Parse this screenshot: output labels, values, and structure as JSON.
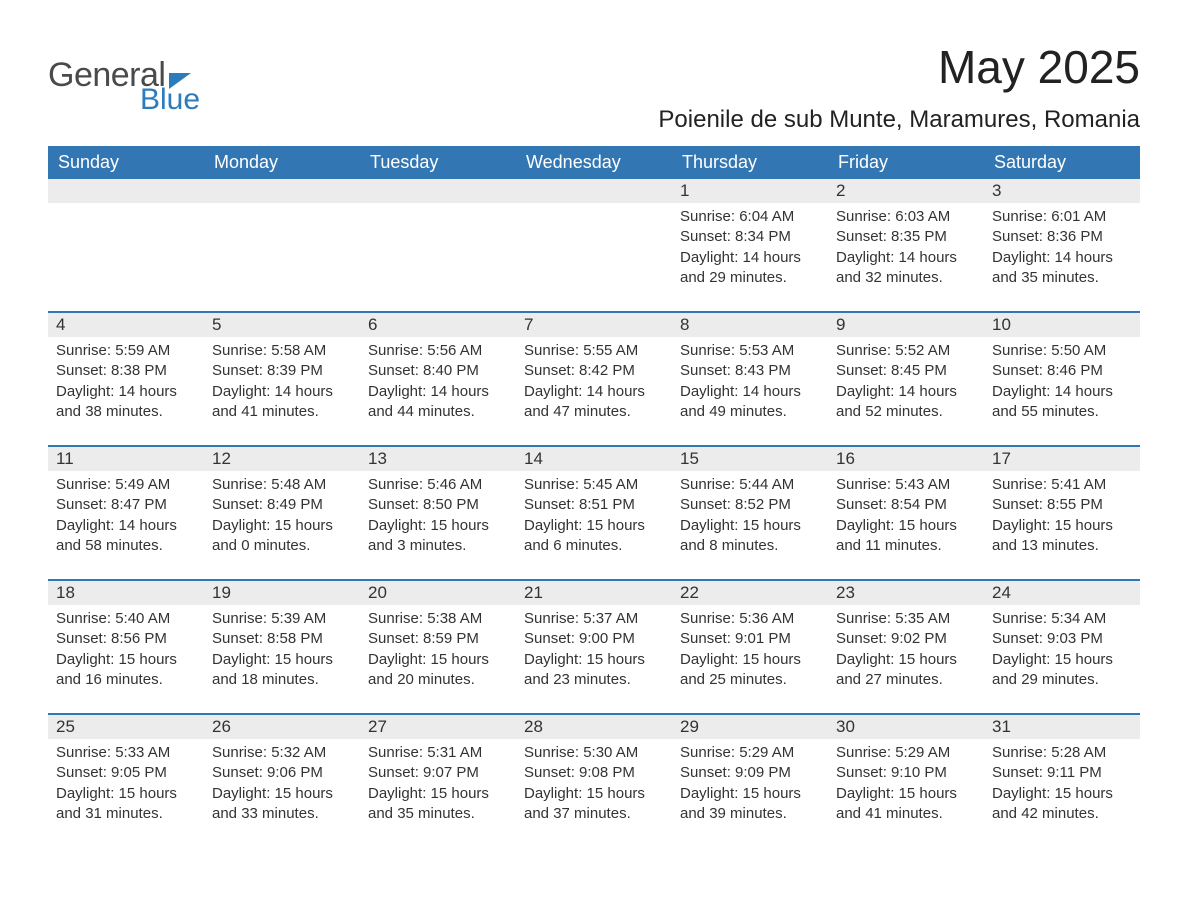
{
  "brand": {
    "general": "General",
    "blue": "Blue"
  },
  "title": "May 2025",
  "subtitle": "Poienile de sub Munte, Maramures, Romania",
  "colors": {
    "header_bg": "#3277b3",
    "header_text": "#ffffff",
    "daynum_bg": "#ececec",
    "week_divider": "#3277b3",
    "text": "#333333",
    "logo_blue": "#2b7bbd",
    "logo_gray": "#4a4a4a",
    "page_bg": "#ffffff"
  },
  "day_headers": [
    "Sunday",
    "Monday",
    "Tuesday",
    "Wednesday",
    "Thursday",
    "Friday",
    "Saturday"
  ],
  "weeks": [
    [
      {
        "day": "",
        "sunrise": "",
        "sunset": "",
        "daylight": ""
      },
      {
        "day": "",
        "sunrise": "",
        "sunset": "",
        "daylight": ""
      },
      {
        "day": "",
        "sunrise": "",
        "sunset": "",
        "daylight": ""
      },
      {
        "day": "",
        "sunrise": "",
        "sunset": "",
        "daylight": ""
      },
      {
        "day": "1",
        "sunrise": "Sunrise: 6:04 AM",
        "sunset": "Sunset: 8:34 PM",
        "daylight": "Daylight: 14 hours and 29 minutes."
      },
      {
        "day": "2",
        "sunrise": "Sunrise: 6:03 AM",
        "sunset": "Sunset: 8:35 PM",
        "daylight": "Daylight: 14 hours and 32 minutes."
      },
      {
        "day": "3",
        "sunrise": "Sunrise: 6:01 AM",
        "sunset": "Sunset: 8:36 PM",
        "daylight": "Daylight: 14 hours and 35 minutes."
      }
    ],
    [
      {
        "day": "4",
        "sunrise": "Sunrise: 5:59 AM",
        "sunset": "Sunset: 8:38 PM",
        "daylight": "Daylight: 14 hours and 38 minutes."
      },
      {
        "day": "5",
        "sunrise": "Sunrise: 5:58 AM",
        "sunset": "Sunset: 8:39 PM",
        "daylight": "Daylight: 14 hours and 41 minutes."
      },
      {
        "day": "6",
        "sunrise": "Sunrise: 5:56 AM",
        "sunset": "Sunset: 8:40 PM",
        "daylight": "Daylight: 14 hours and 44 minutes."
      },
      {
        "day": "7",
        "sunrise": "Sunrise: 5:55 AM",
        "sunset": "Sunset: 8:42 PM",
        "daylight": "Daylight: 14 hours and 47 minutes."
      },
      {
        "day": "8",
        "sunrise": "Sunrise: 5:53 AM",
        "sunset": "Sunset: 8:43 PM",
        "daylight": "Daylight: 14 hours and 49 minutes."
      },
      {
        "day": "9",
        "sunrise": "Sunrise: 5:52 AM",
        "sunset": "Sunset: 8:45 PM",
        "daylight": "Daylight: 14 hours and 52 minutes."
      },
      {
        "day": "10",
        "sunrise": "Sunrise: 5:50 AM",
        "sunset": "Sunset: 8:46 PM",
        "daylight": "Daylight: 14 hours and 55 minutes."
      }
    ],
    [
      {
        "day": "11",
        "sunrise": "Sunrise: 5:49 AM",
        "sunset": "Sunset: 8:47 PM",
        "daylight": "Daylight: 14 hours and 58 minutes."
      },
      {
        "day": "12",
        "sunrise": "Sunrise: 5:48 AM",
        "sunset": "Sunset: 8:49 PM",
        "daylight": "Daylight: 15 hours and 0 minutes."
      },
      {
        "day": "13",
        "sunrise": "Sunrise: 5:46 AM",
        "sunset": "Sunset: 8:50 PM",
        "daylight": "Daylight: 15 hours and 3 minutes."
      },
      {
        "day": "14",
        "sunrise": "Sunrise: 5:45 AM",
        "sunset": "Sunset: 8:51 PM",
        "daylight": "Daylight: 15 hours and 6 minutes."
      },
      {
        "day": "15",
        "sunrise": "Sunrise: 5:44 AM",
        "sunset": "Sunset: 8:52 PM",
        "daylight": "Daylight: 15 hours and 8 minutes."
      },
      {
        "day": "16",
        "sunrise": "Sunrise: 5:43 AM",
        "sunset": "Sunset: 8:54 PM",
        "daylight": "Daylight: 15 hours and 11 minutes."
      },
      {
        "day": "17",
        "sunrise": "Sunrise: 5:41 AM",
        "sunset": "Sunset: 8:55 PM",
        "daylight": "Daylight: 15 hours and 13 minutes."
      }
    ],
    [
      {
        "day": "18",
        "sunrise": "Sunrise: 5:40 AM",
        "sunset": "Sunset: 8:56 PM",
        "daylight": "Daylight: 15 hours and 16 minutes."
      },
      {
        "day": "19",
        "sunrise": "Sunrise: 5:39 AM",
        "sunset": "Sunset: 8:58 PM",
        "daylight": "Daylight: 15 hours and 18 minutes."
      },
      {
        "day": "20",
        "sunrise": "Sunrise: 5:38 AM",
        "sunset": "Sunset: 8:59 PM",
        "daylight": "Daylight: 15 hours and 20 minutes."
      },
      {
        "day": "21",
        "sunrise": "Sunrise: 5:37 AM",
        "sunset": "Sunset: 9:00 PM",
        "daylight": "Daylight: 15 hours and 23 minutes."
      },
      {
        "day": "22",
        "sunrise": "Sunrise: 5:36 AM",
        "sunset": "Sunset: 9:01 PM",
        "daylight": "Daylight: 15 hours and 25 minutes."
      },
      {
        "day": "23",
        "sunrise": "Sunrise: 5:35 AM",
        "sunset": "Sunset: 9:02 PM",
        "daylight": "Daylight: 15 hours and 27 minutes."
      },
      {
        "day": "24",
        "sunrise": "Sunrise: 5:34 AM",
        "sunset": "Sunset: 9:03 PM",
        "daylight": "Daylight: 15 hours and 29 minutes."
      }
    ],
    [
      {
        "day": "25",
        "sunrise": "Sunrise: 5:33 AM",
        "sunset": "Sunset: 9:05 PM",
        "daylight": "Daylight: 15 hours and 31 minutes."
      },
      {
        "day": "26",
        "sunrise": "Sunrise: 5:32 AM",
        "sunset": "Sunset: 9:06 PM",
        "daylight": "Daylight: 15 hours and 33 minutes."
      },
      {
        "day": "27",
        "sunrise": "Sunrise: 5:31 AM",
        "sunset": "Sunset: 9:07 PM",
        "daylight": "Daylight: 15 hours and 35 minutes."
      },
      {
        "day": "28",
        "sunrise": "Sunrise: 5:30 AM",
        "sunset": "Sunset: 9:08 PM",
        "daylight": "Daylight: 15 hours and 37 minutes."
      },
      {
        "day": "29",
        "sunrise": "Sunrise: 5:29 AM",
        "sunset": "Sunset: 9:09 PM",
        "daylight": "Daylight: 15 hours and 39 minutes."
      },
      {
        "day": "30",
        "sunrise": "Sunrise: 5:29 AM",
        "sunset": "Sunset: 9:10 PM",
        "daylight": "Daylight: 15 hours and 41 minutes."
      },
      {
        "day": "31",
        "sunrise": "Sunrise: 5:28 AM",
        "sunset": "Sunset: 9:11 PM",
        "daylight": "Daylight: 15 hours and 42 minutes."
      }
    ]
  ]
}
